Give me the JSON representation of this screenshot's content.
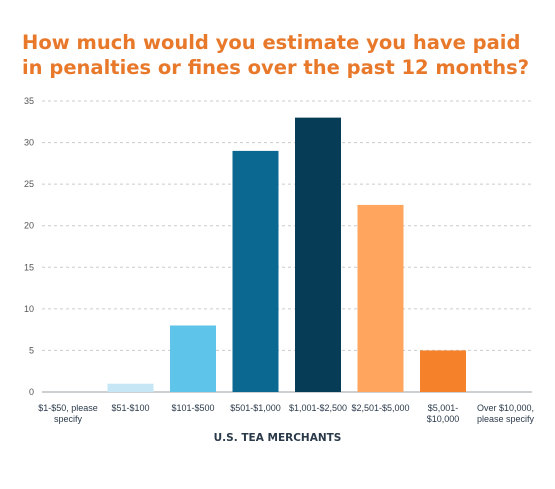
{
  "chart_data": {
    "type": "bar",
    "title": "How much would you estimate you have paid in penalties or fines over the past 12 months?",
    "xlabel": "U.S. TEA MERCHANTS",
    "ylabel": "",
    "ylim": [
      0,
      35
    ],
    "yticks": [
      0,
      5,
      10,
      15,
      20,
      25,
      30,
      35
    ],
    "grid": true,
    "categories": [
      [
        "$1-$50, please",
        "specify"
      ],
      [
        "$51-$100"
      ],
      [
        "$101-$500"
      ],
      [
        "$501-$1,000"
      ],
      [
        "$1,001-$2,500"
      ],
      [
        "$2,501-$5,000"
      ],
      [
        "$5,001-",
        "$10,000"
      ],
      [
        "Over $10,000,",
        "please specify"
      ]
    ],
    "values": [
      0,
      1,
      8,
      29,
      33,
      22.5,
      5,
      0
    ],
    "colors": [
      "#c6e6f5",
      "#c6e6f5",
      "#5fc4ea",
      "#0a6891",
      "#073c57",
      "#ffa55e",
      "#f5822a",
      "#c6e6f5"
    ]
  }
}
